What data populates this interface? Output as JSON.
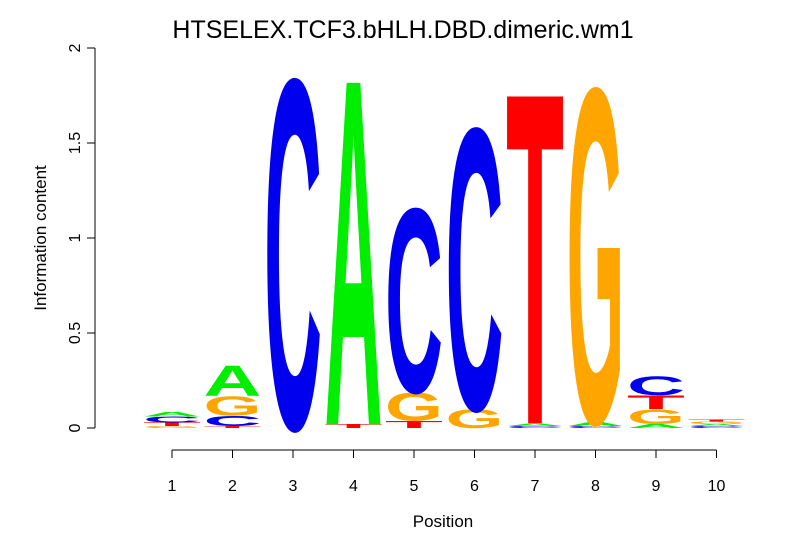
{
  "chart_data": {
    "type": "sequence-logo",
    "title": "HTSELEX.TCF3.bHLH.DBD.dimeric.wm1",
    "xlabel": "Position",
    "ylabel": "Information content",
    "ylim": [
      0,
      2
    ],
    "yticks": [
      "0",
      "0.5",
      "1",
      "1.5",
      "2"
    ],
    "positions": [
      "1",
      "2",
      "3",
      "4",
      "5",
      "6",
      "7",
      "8",
      "9",
      "10"
    ],
    "colors": {
      "A": "#00ee00",
      "C": "#0000ee",
      "G": "#ffa500",
      "T": "#ff0000"
    },
    "stacks": [
      [
        {
          "letter": "G",
          "value": 0.01
        },
        {
          "letter": "T",
          "value": 0.02
        },
        {
          "letter": "C",
          "value": 0.03
        },
        {
          "letter": "A",
          "value": 0.025
        }
      ],
      [
        {
          "letter": "T",
          "value": 0.01
        },
        {
          "letter": "C",
          "value": 0.055
        },
        {
          "letter": "G",
          "value": 0.105
        },
        {
          "letter": "A",
          "value": 0.165
        }
      ],
      [
        {
          "letter": "C",
          "value": 1.9
        }
      ],
      [
        {
          "letter": "T",
          "value": 0.02
        },
        {
          "letter": "A",
          "value": 1.88
        }
      ],
      [
        {
          "letter": "T",
          "value": 0.04
        },
        {
          "letter": "G",
          "value": 0.15
        },
        {
          "letter": "C",
          "value": 1.0
        }
      ],
      [
        {
          "letter": "G",
          "value": 0.1
        },
        {
          "letter": "C",
          "value": 1.53
        }
      ],
      [
        {
          "letter": "C",
          "value": 0.01
        },
        {
          "letter": "A",
          "value": 0.015
        },
        {
          "letter": "T",
          "value": 1.8
        }
      ],
      [
        {
          "letter": "C",
          "value": 0.01
        },
        {
          "letter": "A",
          "value": 0.02
        },
        {
          "letter": "G",
          "value": 1.82
        }
      ],
      [
        {
          "letter": "A",
          "value": 0.02
        },
        {
          "letter": "G",
          "value": 0.08
        },
        {
          "letter": "T",
          "value": 0.075
        },
        {
          "letter": "C",
          "value": 0.1
        }
      ],
      [
        {
          "letter": "C",
          "value": 0.01
        },
        {
          "letter": "A",
          "value": 0.01
        },
        {
          "letter": "G",
          "value": 0.015
        },
        {
          "letter": "T",
          "value": 0.01
        }
      ]
    ]
  }
}
